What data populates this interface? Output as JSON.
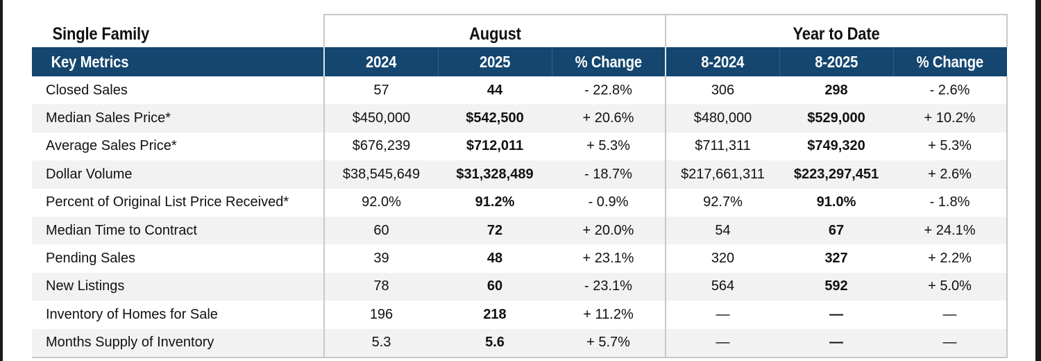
{
  "table": {
    "title": "Single Family",
    "groups": [
      "August",
      "Year to Date"
    ],
    "headers": [
      "Key Metrics",
      "2024",
      "2025",
      "% Change",
      "8-2024",
      "8-2025",
      "% Change"
    ],
    "rows": [
      {
        "label": "Closed Sales",
        "aug_2024": "57",
        "aug_2025": "44",
        "aug_change": "- 22.8%",
        "ytd_2024": "306",
        "ytd_2025": "298",
        "ytd_change": "- 2.6%"
      },
      {
        "label": "Median Sales Price*",
        "aug_2024": "$450,000",
        "aug_2025": "$542,500",
        "aug_change": "+ 20.6%",
        "ytd_2024": "$480,000",
        "ytd_2025": "$529,000",
        "ytd_change": "+ 10.2%"
      },
      {
        "label": "Average Sales Price*",
        "aug_2024": "$676,239",
        "aug_2025": "$712,011",
        "aug_change": "+ 5.3%",
        "ytd_2024": "$711,311",
        "ytd_2025": "$749,320",
        "ytd_change": "+ 5.3%"
      },
      {
        "label": "Dollar Volume",
        "aug_2024": "$38,545,649",
        "aug_2025": "$31,328,489",
        "aug_change": "- 18.7%",
        "ytd_2024": "$217,661,311",
        "ytd_2025": "$223,297,451",
        "ytd_change": "+ 2.6%"
      },
      {
        "label": "Percent of Original List Price Received*",
        "aug_2024": "92.0%",
        "aug_2025": "91.2%",
        "aug_change": "- 0.9%",
        "ytd_2024": "92.7%",
        "ytd_2025": "91.0%",
        "ytd_change": "- 1.8%"
      },
      {
        "label": "Median Time to Contract",
        "aug_2024": "60",
        "aug_2025": "72",
        "aug_change": "+ 20.0%",
        "ytd_2024": "54",
        "ytd_2025": "67",
        "ytd_change": "+ 24.1%"
      },
      {
        "label": "Pending Sales",
        "aug_2024": "39",
        "aug_2025": "48",
        "aug_change": "+ 23.1%",
        "ytd_2024": "320",
        "ytd_2025": "327",
        "ytd_change": "+ 2.2%"
      },
      {
        "label": "New Listings",
        "aug_2024": "78",
        "aug_2025": "60",
        "aug_change": "- 23.1%",
        "ytd_2024": "564",
        "ytd_2025": "592",
        "ytd_change": "+ 5.0%"
      },
      {
        "label": "Inventory of Homes for Sale",
        "aug_2024": "196",
        "aug_2025": "218",
        "aug_change": "+ 11.2%",
        "ytd_2024": "—",
        "ytd_2025": "—",
        "ytd_change": "—"
      },
      {
        "label": "Months Supply of Inventory",
        "aug_2024": "5.3",
        "aug_2025": "5.6",
        "aug_change": "+ 5.7%",
        "ytd_2024": "—",
        "ytd_2025": "—",
        "ytd_change": "—"
      }
    ]
  },
  "colors": {
    "header_background": "#14466f",
    "header_text": "#ffffff",
    "stripe": "#f2f2f2",
    "border": "#c8c8c8"
  }
}
